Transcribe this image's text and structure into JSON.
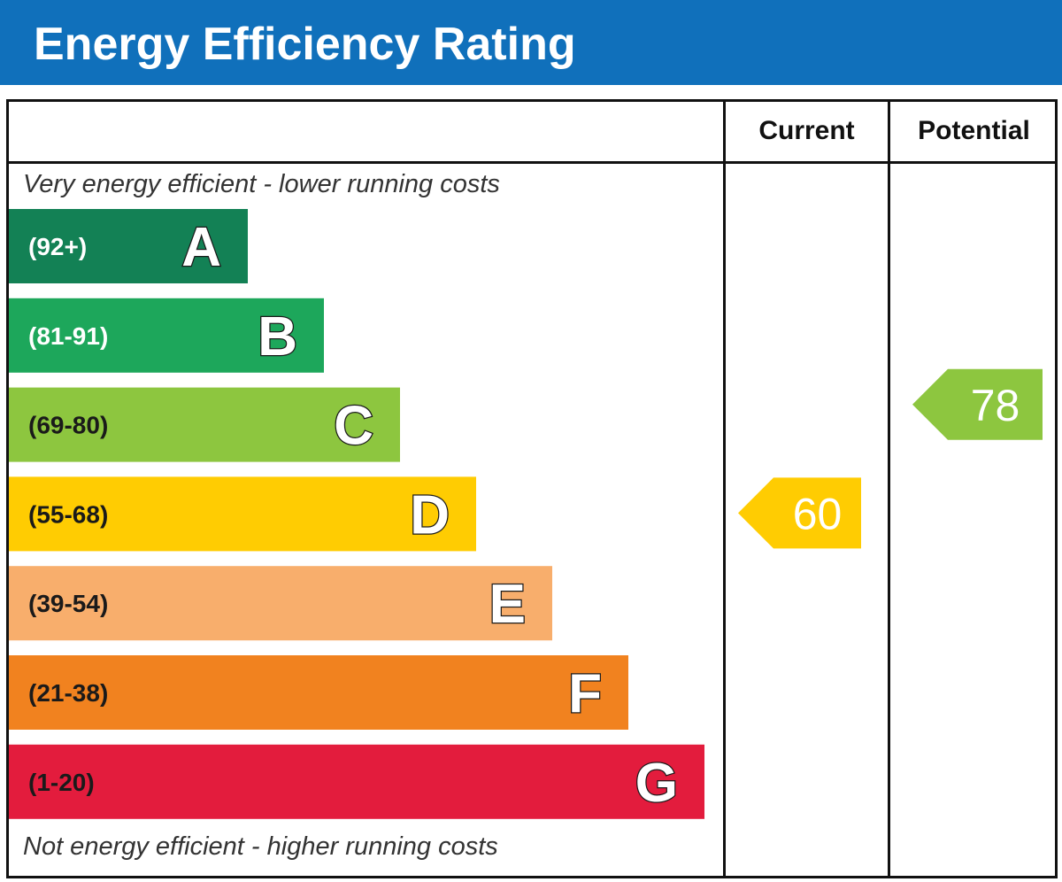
{
  "header": {
    "title": "Energy Efficiency Rating"
  },
  "columns": {
    "current_label": "Current",
    "potential_label": "Potential"
  },
  "notes": {
    "top": "Very energy efficient - lower running costs",
    "bottom": "Not energy efficient - higher running costs"
  },
  "chart_data": {
    "type": "bar",
    "title": "Energy Efficiency Rating",
    "bands": [
      {
        "letter": "A",
        "range": "(92+)",
        "color": "#138155",
        "text_color": "#ffffff"
      },
      {
        "letter": "B",
        "range": "(81-91)",
        "color": "#1da75b",
        "text_color": "#ffffff"
      },
      {
        "letter": "C",
        "range": "(69-80)",
        "color": "#8dc63f",
        "text_color": "#1a1a1a"
      },
      {
        "letter": "D",
        "range": "(55-68)",
        "color": "#ffcc02",
        "text_color": "#1a1a1a"
      },
      {
        "letter": "E",
        "range": "(39-54)",
        "color": "#f8ae6c",
        "text_color": "#1a1a1a"
      },
      {
        "letter": "F",
        "range": "(21-38)",
        "color": "#f1821f",
        "text_color": "#1a1a1a"
      },
      {
        "letter": "G",
        "range": "(1-20)",
        "color": "#e31c3d",
        "text_color": "#1a1a1a"
      }
    ],
    "current": {
      "value": 60,
      "band": "D",
      "color": "#ffcc02"
    },
    "potential": {
      "value": 78,
      "band": "C",
      "color": "#8dc63f"
    }
  }
}
